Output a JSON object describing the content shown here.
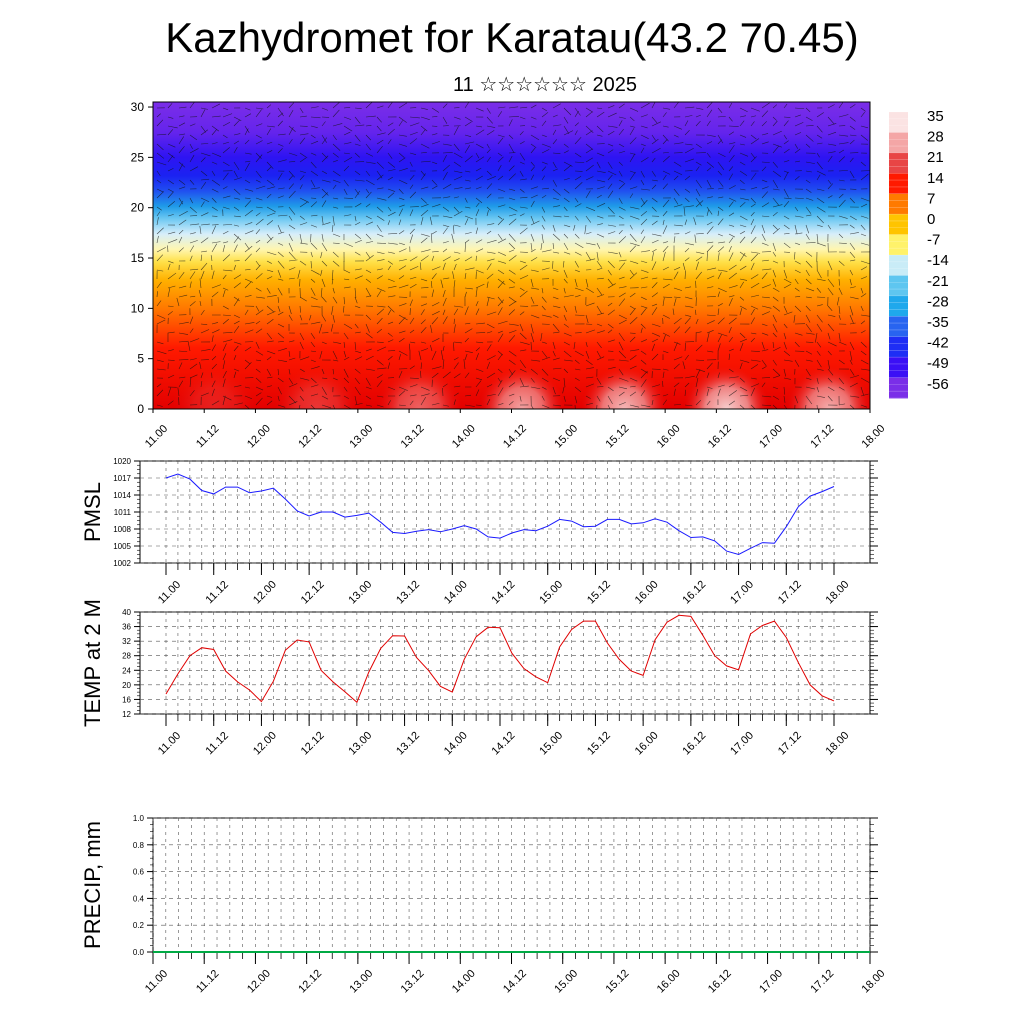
{
  "title": "Kazhydromet for Karatau(43.2 70.45)",
  "subtitle": "11 ☆☆☆☆☆☆ 2025",
  "colorbar": {
    "labels": [
      "35",
      "28",
      "21",
      "14",
      "7",
      "0",
      "-7",
      "-14",
      "-21",
      "-28",
      "-35",
      "-42",
      "-49",
      "-56"
    ],
    "colors": [
      "#fbe3e3",
      "#f4a6a6",
      "#e84545",
      "#ff1a00",
      "#ff7a00",
      "#ffc400",
      "#fff26a",
      "#c9ecf7",
      "#5ec6f0",
      "#1fa8ec",
      "#2864f0",
      "#1e2ef5",
      "#3b10f5",
      "#7a2ee8"
    ]
  },
  "x_tick_labels": [
    "11.00",
    "11.12",
    "12.00",
    "12.12",
    "13.00",
    "13.12",
    "14.00",
    "14.12",
    "15.00",
    "15.12",
    "16.00",
    "16.12",
    "17.00",
    "17.12",
    "18.00"
  ],
  "chart_data": [
    {
      "type": "heatmap",
      "name": "cross-section",
      "y_ticks": [
        0,
        5,
        10,
        15,
        20,
        25,
        30
      ],
      "ylim": [
        0,
        30.5
      ],
      "x": [
        "11.00",
        "11.12",
        "12.00",
        "12.12",
        "13.00",
        "13.12",
        "14.00",
        "14.12",
        "15.00",
        "15.12",
        "16.00",
        "16.12",
        "17.00",
        "17.12",
        "18.00"
      ],
      "value_range": [
        -60,
        38
      ]
    },
    {
      "type": "line",
      "ylabel": "PMSL",
      "ylim": [
        1002,
        1020
      ],
      "y_ticks": [
        1002,
        1005,
        1008,
        1011,
        1014,
        1017,
        1020
      ],
      "color": "#1a1aff",
      "x_step_hours": 3,
      "values": [
        1017.0,
        1017.7,
        1016.8,
        1014.8,
        1014.2,
        1015.4,
        1015.4,
        1014.4,
        1014.7,
        1015.2,
        1013.3,
        1011.2,
        1010.3,
        1011.0,
        1011.0,
        1010.1,
        1010.4,
        1010.8,
        1009.2,
        1007.4,
        1007.2,
        1007.6,
        1007.9,
        1007.5,
        1008.0,
        1008.6,
        1008.0,
        1006.6,
        1006.4,
        1007.3,
        1007.9,
        1007.7,
        1008.5,
        1009.7,
        1009.4,
        1008.4,
        1008.5,
        1009.7,
        1009.7,
        1008.9,
        1009.1,
        1009.8,
        1009.2,
        1007.7,
        1006.5,
        1006.6,
        1005.9,
        1004.1,
        1003.5,
        1004.6,
        1005.6,
        1005.5,
        1008.4,
        1011.9,
        1013.8,
        1014.6,
        1015.5
      ]
    },
    {
      "type": "line",
      "ylabel": "TEMP at 2 M",
      "ylim": [
        12,
        40
      ],
      "y_ticks": [
        12,
        16,
        20,
        24,
        28,
        32,
        36,
        40
      ],
      "color": "#e00000",
      "x_step_hours": 3,
      "values": [
        17.5,
        23.0,
        28.0,
        30.2,
        29.7,
        23.8,
        20.8,
        18.6,
        15.4,
        21.0,
        29.5,
        32.3,
        31.8,
        24.0,
        20.8,
        18.1,
        15.2,
        23.5,
        30.0,
        33.5,
        33.4,
        27.5,
        24.0,
        19.6,
        18.0,
        27.0,
        33.2,
        35.8,
        35.7,
        28.7,
        24.5,
        22.2,
        20.6,
        30.4,
        35.2,
        37.5,
        37.5,
        31.5,
        27.0,
        23.8,
        22.6,
        32.4,
        37.2,
        39.1,
        38.8,
        33.6,
        28.0,
        25.2,
        24.1,
        34.0,
        36.3,
        37.5,
        33.0,
        26.2,
        20.0,
        17.0,
        15.6
      ]
    },
    {
      "type": "line",
      "ylabel": "PRECIP, mm",
      "ylim": [
        0,
        1.0
      ],
      "y_ticks": [
        "0.0",
        "0.2",
        "0.4",
        "0.6",
        "0.8",
        "1.0"
      ],
      "color": "#00aa44",
      "x_step_hours": 3,
      "values": [
        0,
        0,
        0,
        0,
        0,
        0,
        0,
        0,
        0,
        0,
        0,
        0,
        0,
        0,
        0,
        0,
        0,
        0,
        0,
        0,
        0,
        0,
        0,
        0,
        0,
        0,
        0,
        0,
        0,
        0,
        0,
        0,
        0,
        0,
        0,
        0,
        0,
        0,
        0,
        0,
        0,
        0,
        0,
        0,
        0,
        0,
        0,
        0,
        0,
        0,
        0,
        0,
        0,
        0,
        0,
        0,
        0
      ]
    }
  ]
}
